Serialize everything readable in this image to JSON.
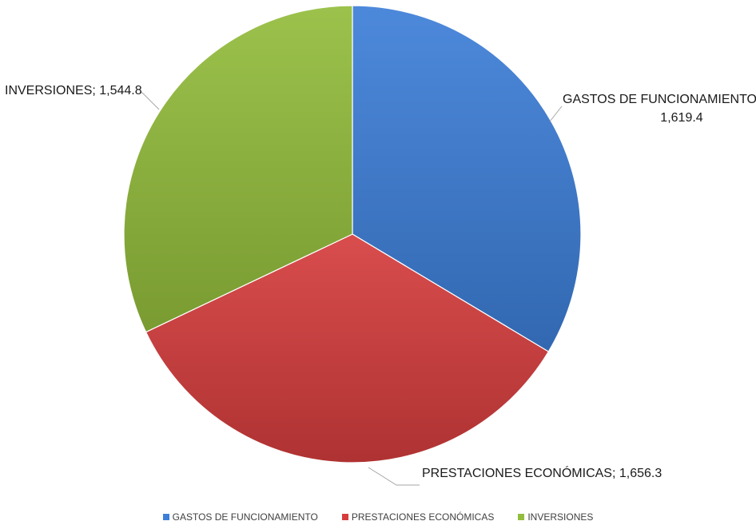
{
  "chart_data": {
    "type": "pie",
    "title": "",
    "categories": [
      "GASTOS DE FUNCIONAMIENTO",
      "PRESTACIONES ECONÓMICAS",
      "INVERSIONES"
    ],
    "values": [
      1619.4,
      1656.3,
      1544.8
    ],
    "colors": [
      "#3d7fd8",
      "#d63d3d",
      "#93bd3c"
    ],
    "data_labels": [
      [
        "GASTOS DE FUNCIONAMIENTO;",
        "1,619.4"
      ],
      [
        "PRESTACIONES ECONÓMICAS; 1,656.3"
      ],
      [
        "INVERSIONES; 1,544.8"
      ]
    ],
    "legend_position": "bottom"
  }
}
